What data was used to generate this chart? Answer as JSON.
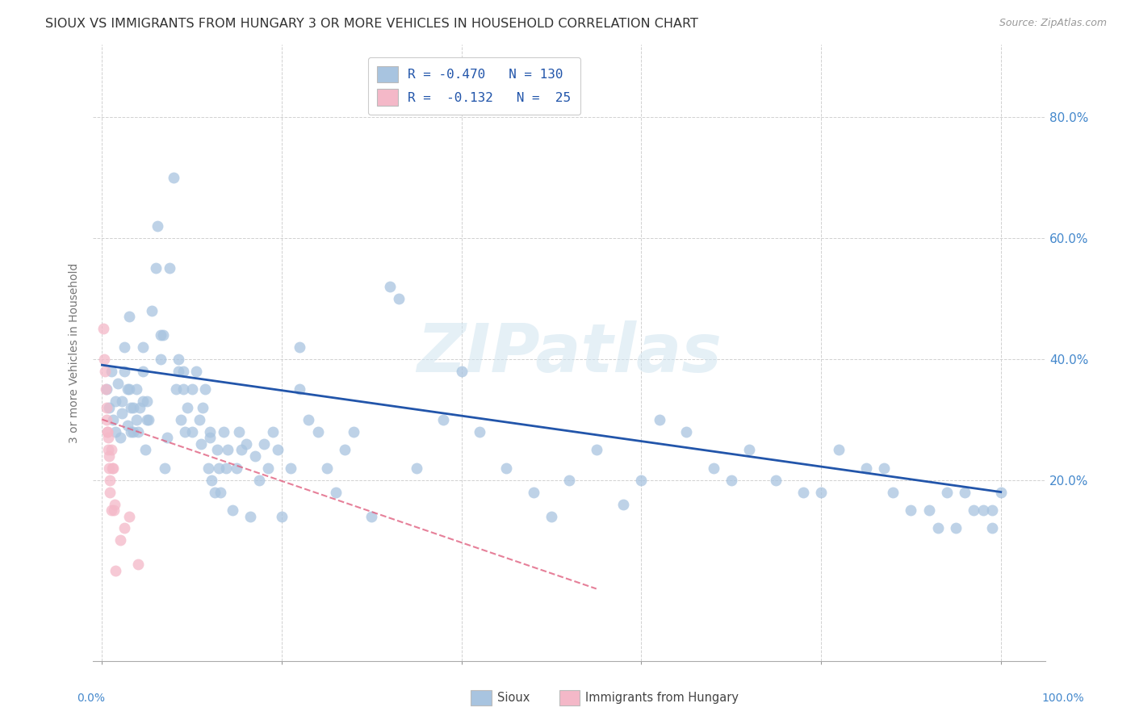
{
  "title": "SIOUX VS IMMIGRANTS FROM HUNGARY 3 OR MORE VEHICLES IN HOUSEHOLD CORRELATION CHART",
  "source": "Source: ZipAtlas.com",
  "ylabel": "3 or more Vehicles in Household",
  "watermark": "ZIPatlas",
  "legend_sioux_r": "-0.470",
  "legend_sioux_n": "130",
  "legend_hungary_r": "-0.132",
  "legend_hungary_n": "25",
  "sioux_color": "#a8c4e0",
  "sioux_line_color": "#2255aa",
  "hungary_color": "#f4b8c8",
  "hungary_line_color": "#e06080",
  "sioux_scatter": [
    [
      0.005,
      0.35
    ],
    [
      0.008,
      0.32
    ],
    [
      0.01,
      0.38
    ],
    [
      0.012,
      0.3
    ],
    [
      0.015,
      0.28
    ],
    [
      0.015,
      0.33
    ],
    [
      0.018,
      0.36
    ],
    [
      0.02,
      0.27
    ],
    [
      0.022,
      0.31
    ],
    [
      0.022,
      0.33
    ],
    [
      0.025,
      0.42
    ],
    [
      0.025,
      0.38
    ],
    [
      0.028,
      0.29
    ],
    [
      0.028,
      0.35
    ],
    [
      0.03,
      0.47
    ],
    [
      0.03,
      0.35
    ],
    [
      0.032,
      0.32
    ],
    [
      0.032,
      0.28
    ],
    [
      0.035,
      0.28
    ],
    [
      0.035,
      0.32
    ],
    [
      0.038,
      0.3
    ],
    [
      0.038,
      0.35
    ],
    [
      0.04,
      0.28
    ],
    [
      0.042,
      0.32
    ],
    [
      0.045,
      0.33
    ],
    [
      0.045,
      0.42
    ],
    [
      0.045,
      0.38
    ],
    [
      0.048,
      0.25
    ],
    [
      0.05,
      0.3
    ],
    [
      0.05,
      0.33
    ],
    [
      0.052,
      0.3
    ],
    [
      0.055,
      0.48
    ],
    [
      0.06,
      0.55
    ],
    [
      0.062,
      0.62
    ],
    [
      0.065,
      0.4
    ],
    [
      0.065,
      0.44
    ],
    [
      0.068,
      0.44
    ],
    [
      0.07,
      0.22
    ],
    [
      0.072,
      0.27
    ],
    [
      0.075,
      0.55
    ],
    [
      0.08,
      0.7
    ],
    [
      0.082,
      0.35
    ],
    [
      0.085,
      0.38
    ],
    [
      0.085,
      0.4
    ],
    [
      0.088,
      0.3
    ],
    [
      0.09,
      0.35
    ],
    [
      0.09,
      0.38
    ],
    [
      0.092,
      0.28
    ],
    [
      0.095,
      0.32
    ],
    [
      0.1,
      0.35
    ],
    [
      0.1,
      0.28
    ],
    [
      0.105,
      0.38
    ],
    [
      0.108,
      0.3
    ],
    [
      0.11,
      0.26
    ],
    [
      0.112,
      0.32
    ],
    [
      0.115,
      0.35
    ],
    [
      0.118,
      0.22
    ],
    [
      0.12,
      0.27
    ],
    [
      0.12,
      0.28
    ],
    [
      0.122,
      0.2
    ],
    [
      0.125,
      0.18
    ],
    [
      0.128,
      0.25
    ],
    [
      0.13,
      0.22
    ],
    [
      0.132,
      0.18
    ],
    [
      0.135,
      0.28
    ],
    [
      0.138,
      0.22
    ],
    [
      0.14,
      0.25
    ],
    [
      0.145,
      0.15
    ],
    [
      0.15,
      0.22
    ],
    [
      0.152,
      0.28
    ],
    [
      0.155,
      0.25
    ],
    [
      0.16,
      0.26
    ],
    [
      0.165,
      0.14
    ],
    [
      0.17,
      0.24
    ],
    [
      0.175,
      0.2
    ],
    [
      0.18,
      0.26
    ],
    [
      0.185,
      0.22
    ],
    [
      0.19,
      0.28
    ],
    [
      0.195,
      0.25
    ],
    [
      0.2,
      0.14
    ],
    [
      0.21,
      0.22
    ],
    [
      0.22,
      0.35
    ],
    [
      0.22,
      0.42
    ],
    [
      0.23,
      0.3
    ],
    [
      0.24,
      0.28
    ],
    [
      0.25,
      0.22
    ],
    [
      0.26,
      0.18
    ],
    [
      0.27,
      0.25
    ],
    [
      0.28,
      0.28
    ],
    [
      0.3,
      0.14
    ],
    [
      0.32,
      0.52
    ],
    [
      0.33,
      0.5
    ],
    [
      0.35,
      0.22
    ],
    [
      0.38,
      0.3
    ],
    [
      0.4,
      0.38
    ],
    [
      0.42,
      0.28
    ],
    [
      0.45,
      0.22
    ],
    [
      0.48,
      0.18
    ],
    [
      0.5,
      0.14
    ],
    [
      0.52,
      0.2
    ],
    [
      0.55,
      0.25
    ],
    [
      0.58,
      0.16
    ],
    [
      0.6,
      0.2
    ],
    [
      0.62,
      0.3
    ],
    [
      0.65,
      0.28
    ],
    [
      0.68,
      0.22
    ],
    [
      0.7,
      0.2
    ],
    [
      0.72,
      0.25
    ],
    [
      0.75,
      0.2
    ],
    [
      0.78,
      0.18
    ],
    [
      0.8,
      0.18
    ],
    [
      0.82,
      0.25
    ],
    [
      0.85,
      0.22
    ],
    [
      0.87,
      0.22
    ],
    [
      0.88,
      0.18
    ],
    [
      0.9,
      0.15
    ],
    [
      0.92,
      0.15
    ],
    [
      0.93,
      0.12
    ],
    [
      0.94,
      0.18
    ],
    [
      0.95,
      0.12
    ],
    [
      0.96,
      0.18
    ],
    [
      0.97,
      0.15
    ],
    [
      0.98,
      0.15
    ],
    [
      0.99,
      0.12
    ],
    [
      0.99,
      0.15
    ],
    [
      1.0,
      0.18
    ]
  ],
  "hungary_scatter": [
    [
      0.001,
      0.45
    ],
    [
      0.002,
      0.4
    ],
    [
      0.003,
      0.38
    ],
    [
      0.004,
      0.35
    ],
    [
      0.005,
      0.32
    ],
    [
      0.005,
      0.3
    ],
    [
      0.006,
      0.28
    ],
    [
      0.006,
      0.28
    ],
    [
      0.007,
      0.27
    ],
    [
      0.007,
      0.25
    ],
    [
      0.008,
      0.24
    ],
    [
      0.008,
      0.22
    ],
    [
      0.009,
      0.2
    ],
    [
      0.009,
      0.18
    ],
    [
      0.01,
      0.15
    ],
    [
      0.01,
      0.25
    ],
    [
      0.011,
      0.22
    ],
    [
      0.012,
      0.22
    ],
    [
      0.013,
      0.15
    ],
    [
      0.014,
      0.16
    ],
    [
      0.015,
      0.05
    ],
    [
      0.02,
      0.1
    ],
    [
      0.025,
      0.12
    ],
    [
      0.03,
      0.14
    ],
    [
      0.04,
      0.06
    ]
  ],
  "sioux_trend_x": [
    0.0,
    1.0
  ],
  "sioux_trend_y": [
    0.39,
    0.18
  ],
  "hungary_trend_x": [
    0.0,
    0.55
  ],
  "hungary_trend_y": [
    0.3,
    0.02
  ],
  "xlim": [
    -0.01,
    1.05
  ],
  "ylim": [
    -0.1,
    0.92
  ],
  "ytick_positions": [
    0.2,
    0.4,
    0.6,
    0.8
  ],
  "ytick_labels": [
    "20.0%",
    "40.0%",
    "60.0%",
    "80.0%"
  ],
  "background_color": "#ffffff",
  "grid_color": "#cccccc",
  "title_color": "#333333",
  "title_fontsize": 11.5,
  "axis_label_color": "#777777",
  "right_tick_color": "#4488cc"
}
